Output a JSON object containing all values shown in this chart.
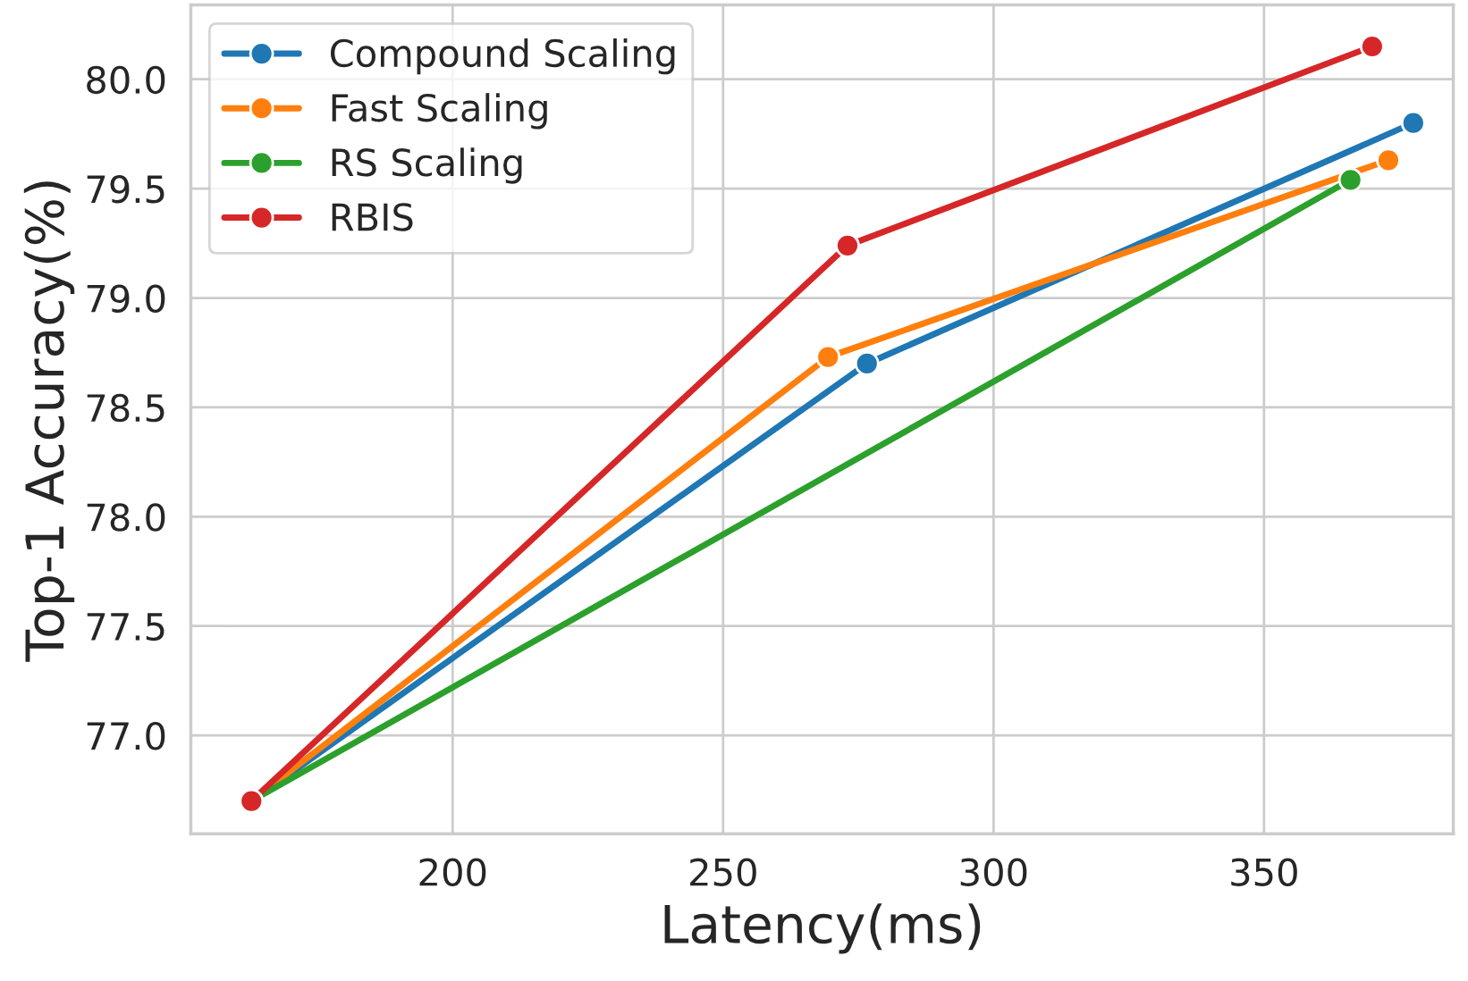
{
  "chart_data": {
    "type": "line",
    "xlabel": "Latency(ms)",
    "ylabel": "Top-1 Accuracy(%)",
    "series": [
      {
        "name": "Compound Scaling",
        "color": "#1f77b4",
        "x": [
          162.8,
          276.6,
          377.6
        ],
        "values": [
          76.7,
          78.7,
          79.8
        ]
      },
      {
        "name": "Fast Scaling",
        "color": "#ff7f0e",
        "x": [
          162.8,
          269.4,
          373
        ],
        "values": [
          76.7,
          78.73,
          79.63
        ]
      },
      {
        "name": "RS Scaling",
        "color": "#2ca02c",
        "x": [
          162.8,
          366
        ],
        "values": [
          76.7,
          79.54
        ]
      },
      {
        "name": "RBIS",
        "color": "#d62728",
        "x": [
          162.8,
          273,
          370
        ],
        "values": [
          76.7,
          79.24,
          80.15
        ]
      }
    ],
    "xlim": [
      151.6,
      385
    ],
    "xticks": [
      200,
      250,
      300,
      350
    ],
    "ylim": [
      76.55,
      80.34
    ],
    "yticks": [
      {
        "value": 77,
        "label": "77.0"
      },
      77.5,
      {
        "value": 78,
        "label": "78.0"
      },
      78.5,
      {
        "value": 79,
        "label": "79.0"
      },
      79.5,
      {
        "value": 80,
        "label": "80.0"
      }
    ],
    "grid": true,
    "legend": "top left",
    "marker": "circle",
    "line_style": "solid"
  }
}
